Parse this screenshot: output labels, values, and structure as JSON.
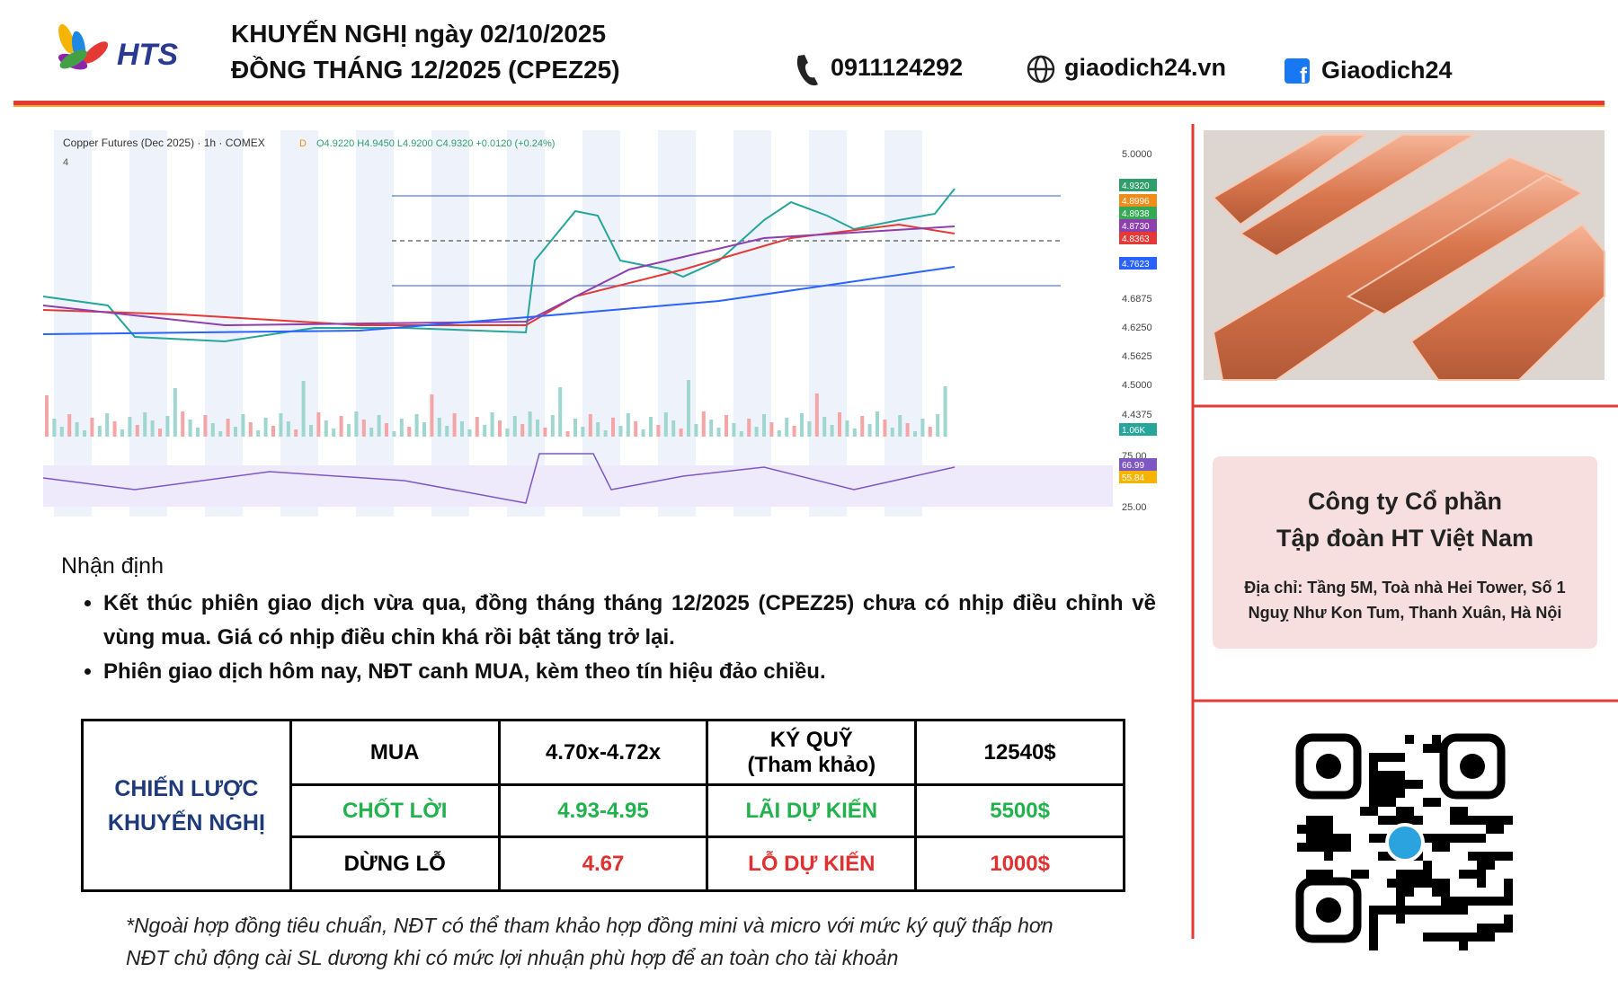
{
  "header": {
    "logo_text": "HTS",
    "title_line1": "KHUYẾN NGHỊ ngày 02/10/2025",
    "title_line2": "ĐỒNG THÁNG 12/2025 (CPEZ25)",
    "phone": "0911124292",
    "website": "giaodich24.vn",
    "facebook": "Giaodich24"
  },
  "chart_image": {
    "title": "Copper Futures (Dec 2025) · 1h · COMEX",
    "flag": "D",
    "ohlc": "O4.9220 H4.9450 L4.9200 C4.9320 +0.0120 (+0.24%)",
    "indicator_count": "4",
    "axis_labels": [
      "5.0000",
      "4.6875",
      "4.6250",
      "4.5625",
      "4.5000",
      "4.4375",
      "75.00",
      "25.00"
    ],
    "tags": [
      {
        "text": "4.9320",
        "color": "#2e9e6b"
      },
      {
        "text": "4.8996",
        "color": "#f08c1a"
      },
      {
        "text": "4.8938",
        "color": "#34a853"
      },
      {
        "text": "4.8730",
        "color": "#8e3fae"
      },
      {
        "text": "4.8363",
        "color": "#e53935"
      },
      {
        "text": "4.7623",
        "color": "#2962ff"
      },
      {
        "text": "1.06K",
        "color": "#26a69a"
      },
      {
        "text": "66.99",
        "color": "#7e57c2"
      },
      {
        "text": "55.84",
        "color": "#f5b400"
      }
    ]
  },
  "analysis": {
    "heading": "Nhận định",
    "bullets": [
      "Kết thúc phiên giao dịch vừa qua, đồng tháng tháng 12/2025 (CPEZ25) chưa có nhịp điều chỉnh về vùng mua. Giá có nhịp điều chỉn khá rồi bật tăng trở lại.",
      "Phiên giao dịch hôm nay, NĐT canh MUA, kèm theo tín hiệu đảo chiều."
    ]
  },
  "table": {
    "strategy_line1": "CHIẾN LƯỢC",
    "strategy_line2": "KHUYẾN NGHỊ",
    "rows": [
      [
        "MUA",
        "4.70x-4.72x",
        "KÝ QUỸ",
        "12540$"
      ],
      [
        "CHỐT LỜI",
        "4.93-4.95",
        "LÃI DỰ KIẾN",
        "5500$"
      ],
      [
        "DỪNG LỖ",
        "4.67",
        "LỖ DỰ KIẾN",
        "1000$"
      ]
    ],
    "margin_note": "(Tham khảo)"
  },
  "notes": [
    "*Ngoài hợp đồng tiêu chuẩn, NĐT có thể tham khảo hợp đồng mini và micro với mức ký quỹ thấp hơn",
    "NĐT chủ động cài SL dương khi có mức lợi nhuận phù hợp để an toàn cho tài khoản"
  ],
  "company": {
    "name_line1": "Công ty Cổ phần",
    "name_line2": "Tập đoàn HT Việt Nam",
    "address": "Địa chỉ: Tầng 5M, Toà nhà Hei Tower, Số 1 Nguỵ Như Kon Tum, Thanh Xuân, Hà Nội"
  }
}
